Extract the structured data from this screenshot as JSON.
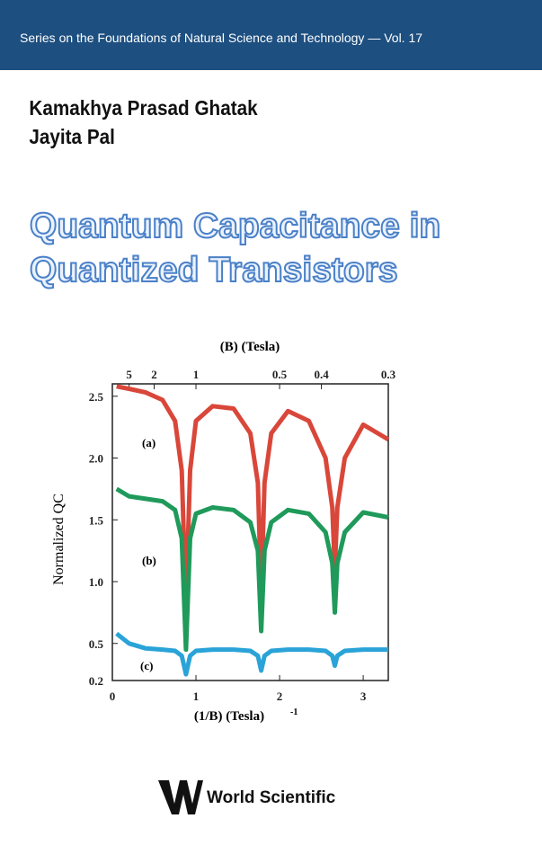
{
  "header": {
    "series_line": "Series on the Foundations of Natural Science and Technology — Vol. 17"
  },
  "authors": [
    "Kamakhya Prasad Ghatak",
    "Jayita Pal"
  ],
  "title": [
    "Quantum Capacitance in",
    "Quantized Transistors"
  ],
  "chart_data": {
    "type": "line",
    "xlabel": "(1/B) (Tesla)",
    "xlabel_superscript": "-1",
    "x2label": "(B) (Tesla)",
    "ylabel": "Normalized QC",
    "x": [
      0.05,
      0.2,
      0.4,
      0.6,
      0.75,
      0.83,
      0.88,
      0.93,
      1.0,
      1.2,
      1.45,
      1.65,
      1.74,
      1.78,
      1.82,
      1.9,
      2.1,
      2.35,
      2.55,
      2.63,
      2.66,
      2.69,
      2.78,
      3.0,
      3.3
    ],
    "series": [
      {
        "name": "(a)",
        "color": "#d9473a",
        "values": [
          2.58,
          2.56,
          2.53,
          2.47,
          2.3,
          1.9,
          0.8,
          1.9,
          2.3,
          2.42,
          2.4,
          2.2,
          1.8,
          0.9,
          1.8,
          2.2,
          2.38,
          2.3,
          2.0,
          1.6,
          1.1,
          1.6,
          2.0,
          2.27,
          2.15
        ]
      },
      {
        "name": "(b)",
        "color": "#1f9a5a",
        "values": [
          1.75,
          1.69,
          1.67,
          1.65,
          1.58,
          1.35,
          0.45,
          1.35,
          1.55,
          1.6,
          1.58,
          1.48,
          1.25,
          0.6,
          1.25,
          1.48,
          1.58,
          1.55,
          1.4,
          1.15,
          0.75,
          1.15,
          1.4,
          1.56,
          1.52
        ]
      },
      {
        "name": "(c)",
        "color": "#2aa3d8",
        "values": [
          0.58,
          0.5,
          0.46,
          0.45,
          0.44,
          0.4,
          0.25,
          0.4,
          0.44,
          0.45,
          0.45,
          0.44,
          0.4,
          0.28,
          0.4,
          0.44,
          0.45,
          0.45,
          0.44,
          0.4,
          0.32,
          0.4,
          0.44,
          0.45,
          0.45
        ]
      }
    ],
    "xlim": [
      0,
      3.3
    ],
    "ylim": [
      0.2,
      2.6
    ],
    "xticks": [
      0,
      1,
      2,
      3
    ],
    "x2ticks": [
      {
        "value": 0.2,
        "label": "5"
      },
      {
        "value": 0.5,
        "label": "2"
      },
      {
        "value": 1,
        "label": "1"
      },
      {
        "value": 2,
        "label": "0.5"
      },
      {
        "value": 2.5,
        "label": "0.4"
      },
      {
        "value": 3.3,
        "label": "0.3"
      }
    ],
    "yticks": [
      {
        "value": 2.5,
        "label": "2.5"
      },
      {
        "value": 2,
        "label": "2.0"
      },
      1.5,
      {
        "value": 1,
        "label": "1.0"
      },
      0.5,
      0.2
    ]
  },
  "publisher": "World Scientific"
}
